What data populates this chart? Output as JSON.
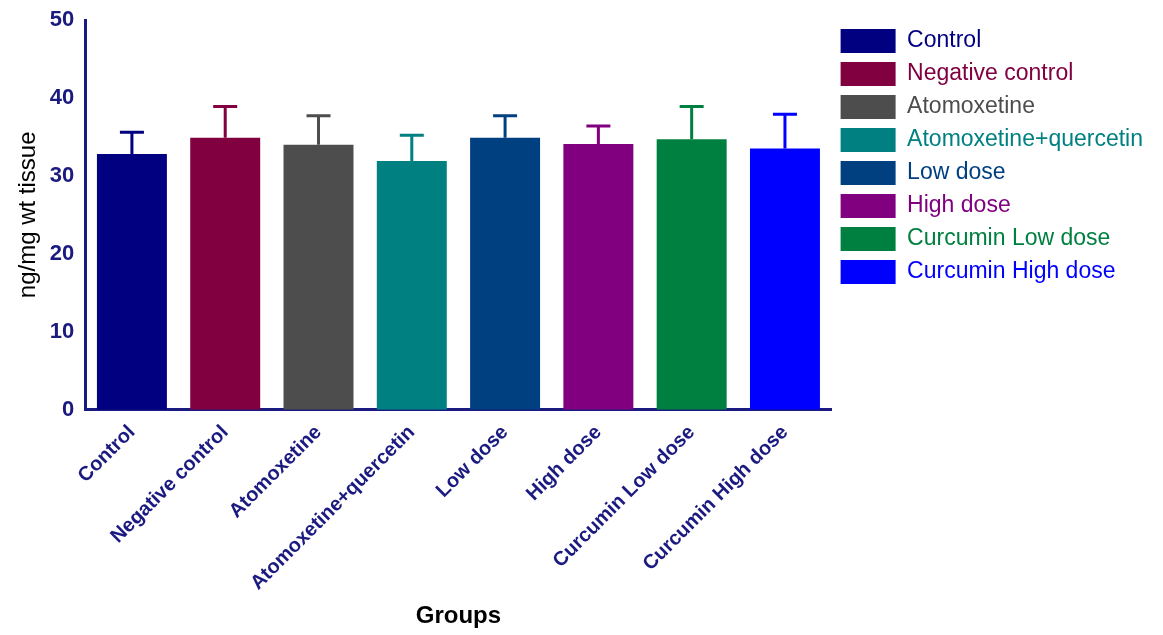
{
  "chart_data": {
    "type": "bar",
    "xlabel": "Groups",
    "ylabel": "ng/mg wt tissue",
    "categories": [
      "Control",
      "Negative control",
      "Atomoxetine",
      "Atomoxetine+quercetin",
      "Low dose",
      "High dose",
      "Curcumin Low dose",
      "Curcumin High dose"
    ],
    "series": [
      {
        "name": "Control",
        "color": "#000080",
        "values": [
          32.8,
          null,
          null,
          null,
          null,
          null,
          null,
          null
        ],
        "errors": [
          [
            32.8,
            35.6
          ],
          null,
          null,
          null,
          null,
          null,
          null,
          null
        ]
      },
      {
        "name": "Negative control",
        "color": "#800040",
        "values": [
          null,
          34.9,
          null,
          null,
          null,
          null,
          null,
          null
        ],
        "errors": [
          null,
          [
            34.9,
            38.9
          ],
          null,
          null,
          null,
          null,
          null,
          null
        ]
      },
      {
        "name": "Atomoxetine",
        "color": "#4d4d4d",
        "values": [
          null,
          null,
          34.0,
          null,
          null,
          null,
          null,
          null
        ],
        "errors": [
          null,
          null,
          [
            34.0,
            37.7
          ],
          null,
          null,
          null,
          null,
          null
        ]
      },
      {
        "name": "Atomoxetine+quercetin",
        "color": "#008080",
        "values": [
          null,
          null,
          null,
          31.9,
          null,
          null,
          null,
          null
        ],
        "errors": [
          null,
          null,
          null,
          [
            31.9,
            35.2
          ],
          null,
          null,
          null,
          null
        ]
      },
      {
        "name": "Low dose",
        "color": "#003f80",
        "values": [
          null,
          null,
          null,
          null,
          34.9,
          null,
          null,
          null
        ],
        "errors": [
          null,
          null,
          null,
          null,
          [
            34.9,
            37.7
          ],
          null,
          null,
          null
        ]
      },
      {
        "name": "High dose",
        "color": "#800080",
        "values": [
          null,
          null,
          null,
          null,
          null,
          34.1,
          null,
          null
        ],
        "errors": [
          null,
          null,
          null,
          null,
          null,
          [
            34.1,
            36.4
          ],
          null,
          null
        ]
      },
      {
        "name": "Curcumin Low dose",
        "color": "#008040",
        "values": [
          null,
          null,
          null,
          null,
          null,
          null,
          34.7,
          null
        ],
        "errors": [
          null,
          null,
          null,
          null,
          null,
          null,
          [
            34.7,
            38.9
          ],
          null
        ]
      },
      {
        "name": "Curcumin High dose",
        "color": "#0000ff",
        "values": [
          null,
          null,
          null,
          null,
          null,
          null,
          null,
          33.5
        ],
        "errors": [
          null,
          null,
          null,
          null,
          null,
          null,
          null,
          [
            33.5,
            37.9
          ]
        ]
      }
    ],
    "ylim": [
      0,
      50
    ],
    "yticks": [
      0,
      10,
      20,
      30,
      40,
      50
    ],
    "grid": false,
    "legend": "top right"
  }
}
